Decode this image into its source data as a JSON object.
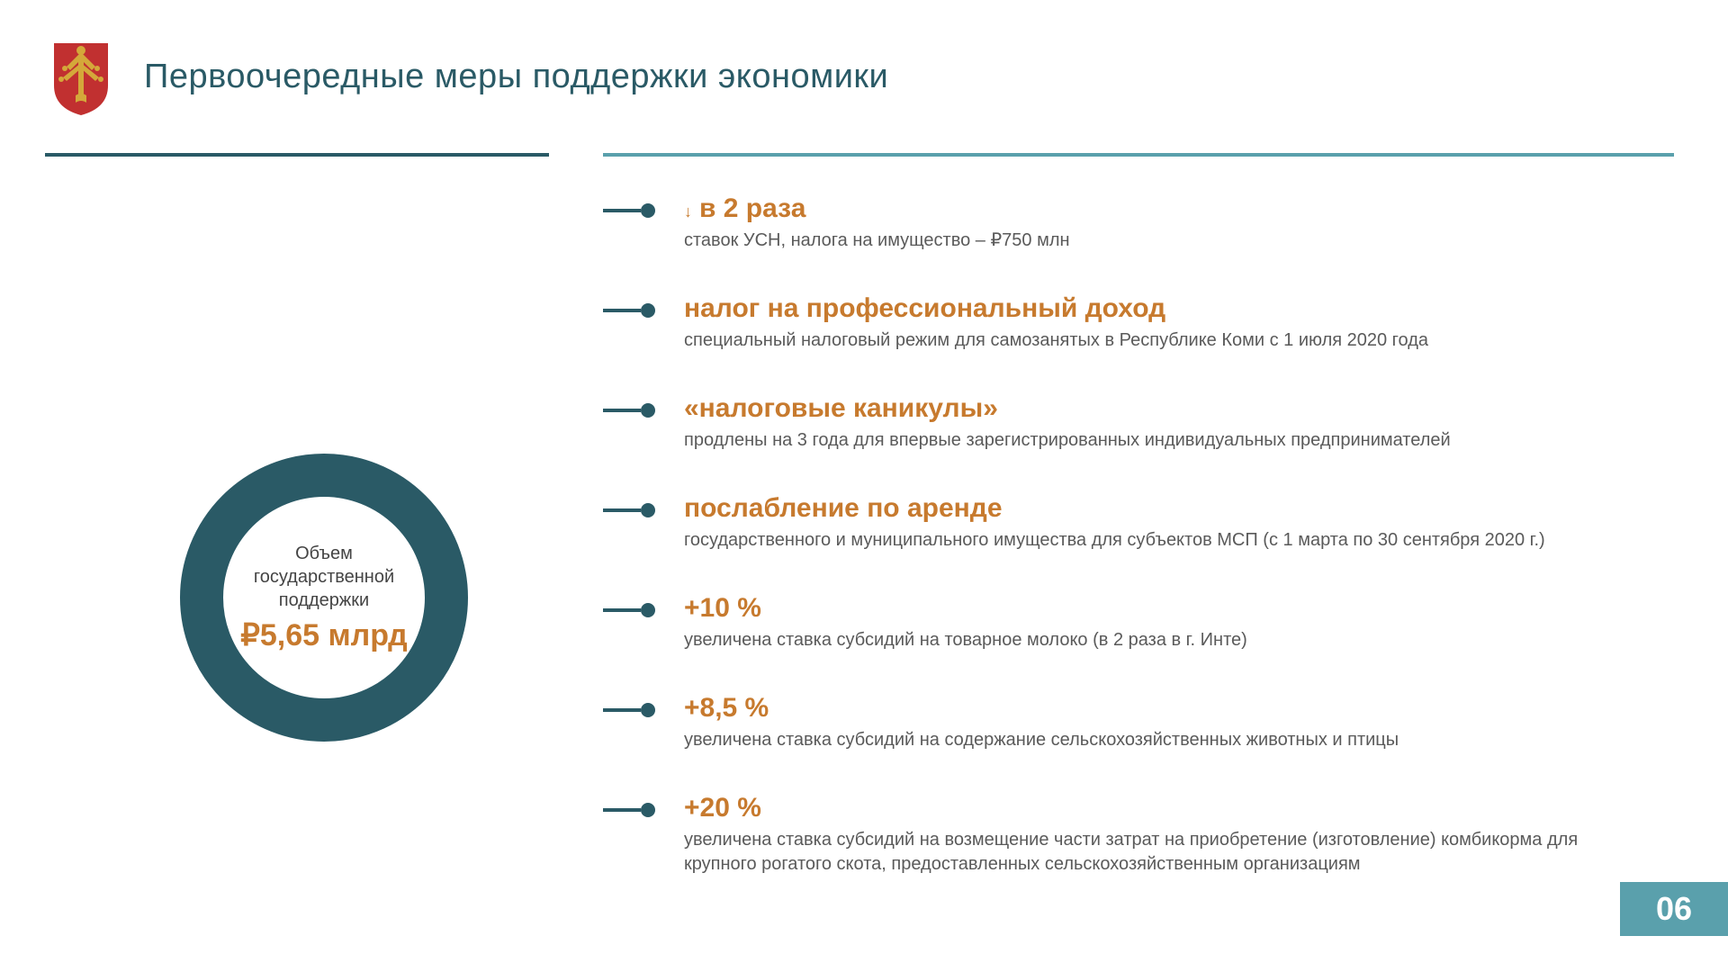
{
  "colors": {
    "title": "#2a5a66",
    "divider_dark": "#2a5a66",
    "divider_light": "#5aa0ac",
    "accent": "#c77a2e",
    "bullet": "#2a5a66",
    "donut_ring": "#2a5a66",
    "donut_inner": "#ffffff",
    "badge_bg": "#5aa0ac",
    "badge_text": "#ffffff",
    "desc_text": "#5a5a5a",
    "emblem_red": "#c13030",
    "emblem_gold": "#d4a83a"
  },
  "layout": {
    "slide_width": 1920,
    "slide_height": 1080,
    "donut_outer_r": 160,
    "donut_stroke": 48,
    "divider_left_width": 560,
    "items_gap": 44,
    "title_fontsize": 38,
    "item_title_fontsize": 30,
    "item_desc_fontsize": 20,
    "donut_label_fontsize": 20,
    "donut_value_fontsize": 34
  },
  "header": {
    "title": "Первоочередные меры поддержки экономики"
  },
  "donut": {
    "label": "Объем государственной поддержки",
    "value": "₽5,65 млрд"
  },
  "items": [
    {
      "prefix_arrow": true,
      "title": "в 2 раза",
      "desc": "ставок УСН, налога на имущество – ₽750 млн"
    },
    {
      "title": "налог на профессиональный доход",
      "desc": "специальный налоговый режим для самозанятых в Республике Коми с 1 июля 2020 года"
    },
    {
      "title": "«налоговые каникулы»",
      "desc": "продлены на 3 года для впервые зарегистрированных индивидуальных предпринимателей"
    },
    {
      "title": "послабление по аренде",
      "desc": "государственного и муниципального имущества для субъектов МСП (с 1 марта по 30 сентября 2020 г.)"
    },
    {
      "title": "+10 %",
      "desc": "увеличена ставка субсидий на  товарное молоко (в 2 раза в г. Инте)"
    },
    {
      "title": "+8,5 %",
      "desc": "увеличена ставка субсидий на содержание сельскохозяйственных животных и птицы"
    },
    {
      "title": "+20 %",
      "desc": "увеличена ставка субсидий на возмещение части затрат на приобретение (изготовление) комбикорма для крупного рогатого скота, предоставленных сельскохозяйственным организациям"
    }
  ],
  "page_number": "06"
}
